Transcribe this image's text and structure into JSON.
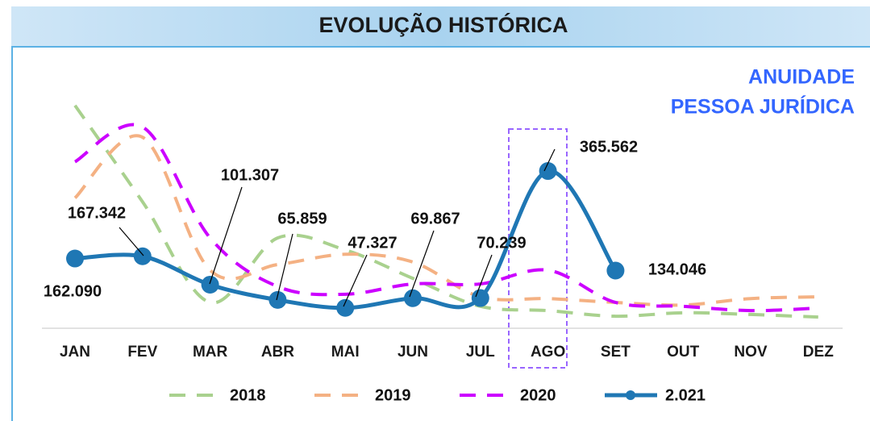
{
  "chart_data": {
    "type": "line",
    "title": "EVOLUÇÃO HISTÓRICA",
    "annotations": [
      "ANUIDADE",
      "PESSOA JURÍDICA"
    ],
    "categories": [
      "JAN",
      "FEV",
      "MAR",
      "ABR",
      "MAI",
      "JUN",
      "JUL",
      "AGO",
      "SET",
      "OUT",
      "NOV",
      "DEZ"
    ],
    "ylim": [
      0,
      600000
    ],
    "series": [
      {
        "name": "2018",
        "color": "#a9d18e",
        "dash": true,
        "values": [
          518000,
          294000,
          60000,
          210000,
          182000,
          116000,
          51000,
          41000,
          28000,
          36000,
          32000,
          26000
        ]
      },
      {
        "name": "2019",
        "color": "#f4b183",
        "dash": true,
        "values": [
          303000,
          444000,
          135000,
          148000,
          172000,
          154000,
          73000,
          69000,
          60000,
          54000,
          69000,
          73000
        ]
      },
      {
        "name": "2020",
        "color": "#cc00ff",
        "dash": true,
        "values": [
          387000,
          468000,
          210000,
          97000,
          79000,
          103000,
          103000,
          135000,
          60000,
          51000,
          41000,
          47000
        ]
      },
      {
        "name": "2.021",
        "color": "#1f77b4",
        "dash": false,
        "markers": true,
        "values": [
          162090,
          167342,
          101307,
          65859,
          47327,
          69867,
          70239,
          365562,
          134046,
          null,
          null,
          null
        ],
        "value_labels": [
          "162.090",
          "167.342",
          "101.307",
          "65.859",
          "47.327",
          "69.867",
          "70.239",
          "365.562",
          "134.046",
          null,
          null,
          null
        ]
      }
    ]
  }
}
